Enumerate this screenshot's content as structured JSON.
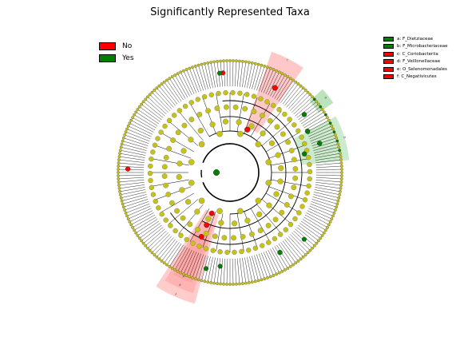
{
  "title": "Significantly Represented Taxa",
  "legend_groups": [
    {
      "label": "No",
      "color": "#ff0000"
    },
    {
      "label": "Yes",
      "color": "#008000"
    }
  ],
  "colors": {
    "no_significance": "#c6c218",
    "group_no": "#ff0000",
    "group_yes": "#008000",
    "highlight_no": "#ff9a9a",
    "highlight_yes": "#8fd08f"
  },
  "biomarkers": [
    {
      "key": "a",
      "name": "F_Dietziaceae",
      "group": "Yes"
    },
    {
      "key": "b",
      "name": "F_Microbacteriaceae",
      "group": "Yes"
    },
    {
      "key": "c",
      "name": "C_Coriobacteriia",
      "group": "No"
    },
    {
      "key": "d",
      "name": "F_Veillonellaceae",
      "group": "No"
    },
    {
      "key": "e",
      "name": "O_Selenomonadales",
      "group": "No"
    },
    {
      "key": "f",
      "name": "C_Negativicutes",
      "group": "No"
    }
  ],
  "wedge_labels": [
    "c",
    "a",
    "b",
    "f",
    "e",
    "d"
  ],
  "legend_items": [
    "a: F_Dietziaceae",
    "b: F_Microbacteriaceae",
    "c: C_Coriobacteriia",
    "d: F_Veillonellaceae",
    "e: O_Selenomonadales",
    "f: C_Negativicutes"
  ]
}
